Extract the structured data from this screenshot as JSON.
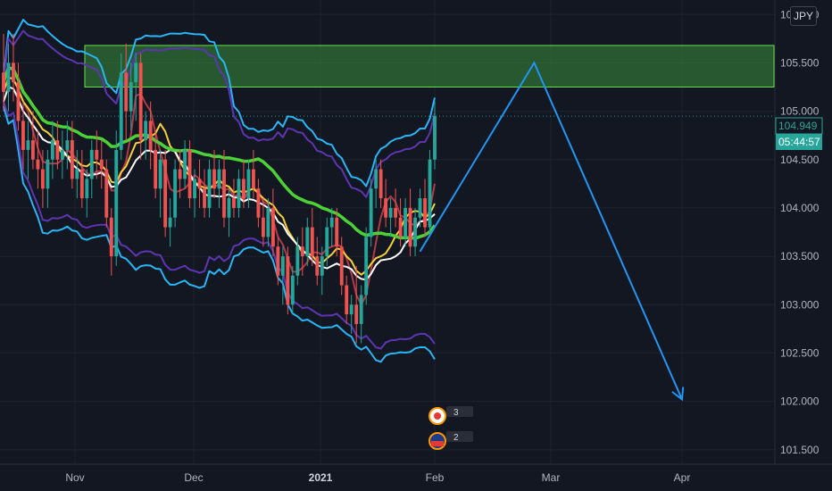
{
  "currency": "JPY",
  "price_axis": {
    "ticks": [
      "106.000",
      "105.500",
      "105.000",
      "104.500",
      "104.000",
      "103.500",
      "103.000",
      "102.500",
      "102.000",
      "101.500"
    ]
  },
  "time_axis": {
    "ticks": [
      {
        "label": "Nov",
        "bold": false
      },
      {
        "label": "Dec",
        "bold": false
      },
      {
        "label": "2021",
        "bold": true
      },
      {
        "label": "Feb",
        "bold": false
      },
      {
        "label": "Mar",
        "bold": false
      },
      {
        "label": "Apr",
        "bold": false
      }
    ]
  },
  "last_price": {
    "value": "104.949",
    "countdown": "05:44:57"
  },
  "events": [
    {
      "country": "JP",
      "count": "3"
    },
    {
      "country": "US",
      "count": "2"
    }
  ],
  "colors": {
    "background": "#131722",
    "bull": "#26a69a",
    "bear": "#ef5350",
    "ma_green": "#4cd137",
    "ma_yellow": "#f7d038",
    "ma_white": "#ffffff",
    "ma_red": "#b23a48",
    "band_cyan": "#29b6f6",
    "band_purple": "#5e35b1",
    "zone": "#4caf50",
    "projection": "#2196f3"
  },
  "chart_data": {
    "type": "candlestick",
    "title": "",
    "ylim": [
      101.35,
      106.15
    ],
    "resistance_zone": [
      105.25,
      105.68
    ],
    "projection": [
      {
        "date": "2021-01-28",
        "price": 103.55
      },
      {
        "date": "2021-02-25",
        "price": 105.5
      },
      {
        "date": "2021-04-01",
        "price": 102.02
      }
    ],
    "candles": [
      [
        105.4,
        105.8,
        105.0,
        105.2
      ],
      [
        105.2,
        105.7,
        105.0,
        105.5
      ],
      [
        105.5,
        105.8,
        105.1,
        105.3
      ],
      [
        105.3,
        105.5,
        104.8,
        104.9
      ],
      [
        104.9,
        105.1,
        104.4,
        104.6
      ],
      [
        104.6,
        104.9,
        104.3,
        104.7
      ],
      [
        104.7,
        105.0,
        104.4,
        104.5
      ],
      [
        104.5,
        104.8,
        104.2,
        104.4
      ],
      [
        104.4,
        104.6,
        104.0,
        104.2
      ],
      [
        104.2,
        104.6,
        104.0,
        104.5
      ],
      [
        104.5,
        104.9,
        104.3,
        104.7
      ],
      [
        104.7,
        104.9,
        104.4,
        104.5
      ],
      [
        104.5,
        104.8,
        104.3,
        104.6
      ],
      [
        104.6,
        104.9,
        104.4,
        104.7
      ],
      [
        104.7,
        104.9,
        104.2,
        104.3
      ],
      [
        104.3,
        104.6,
        104.1,
        104.4
      ],
      [
        104.4,
        104.6,
        104.0,
        104.1
      ],
      [
        104.1,
        104.4,
        103.9,
        104.3
      ],
      [
        104.3,
        104.7,
        104.1,
        104.6
      ],
      [
        104.6,
        104.8,
        104.3,
        104.5
      ],
      [
        104.5,
        104.7,
        104.2,
        104.4
      ],
      [
        104.4,
        104.5,
        103.8,
        103.9
      ],
      [
        103.9,
        104.0,
        103.3,
        103.5
      ],
      [
        103.5,
        104.8,
        103.4,
        104.6
      ],
      [
        104.6,
        105.6,
        104.5,
        105.4
      ],
      [
        105.4,
        105.7,
        104.7,
        105.0
      ],
      [
        105.0,
        105.5,
        104.8,
        105.3
      ],
      [
        105.3,
        105.6,
        104.9,
        105.5
      ],
      [
        105.5,
        105.6,
        104.5,
        104.7
      ],
      [
        104.7,
        105.0,
        104.5,
        104.9
      ],
      [
        104.9,
        105.1,
        104.4,
        104.6
      ],
      [
        104.6,
        104.8,
        104.1,
        104.2
      ],
      [
        104.2,
        104.6,
        103.9,
        104.5
      ],
      [
        104.5,
        104.6,
        103.7,
        103.8
      ],
      [
        103.8,
        104.1,
        103.6,
        103.9
      ],
      [
        103.9,
        104.5,
        103.8,
        104.4
      ],
      [
        104.4,
        104.6,
        104.1,
        104.3
      ],
      [
        104.3,
        104.7,
        104.2,
        104.6
      ],
      [
        104.6,
        104.7,
        104.0,
        104.1
      ],
      [
        104.1,
        104.4,
        103.9,
        104.3
      ],
      [
        104.3,
        104.5,
        104.0,
        104.2
      ],
      [
        104.2,
        104.4,
        103.9,
        104.0
      ],
      [
        104.0,
        104.5,
        103.9,
        104.4
      ],
      [
        104.4,
        104.6,
        104.1,
        104.2
      ],
      [
        104.2,
        104.5,
        104.0,
        104.4
      ],
      [
        104.4,
        104.6,
        103.8,
        103.9
      ],
      [
        103.9,
        104.2,
        103.7,
        104.1
      ],
      [
        104.1,
        104.3,
        103.9,
        104.0
      ],
      [
        104.0,
        104.4,
        103.9,
        104.3
      ],
      [
        104.3,
        104.5,
        104.0,
        104.1
      ],
      [
        104.1,
        104.5,
        104.0,
        104.4
      ],
      [
        104.4,
        104.6,
        104.1,
        104.2
      ],
      [
        104.2,
        104.3,
        103.8,
        103.9
      ],
      [
        103.9,
        104.1,
        103.6,
        103.7
      ],
      [
        103.7,
        104.1,
        103.6,
        104.0
      ],
      [
        104.0,
        104.2,
        103.5,
        103.6
      ],
      [
        103.6,
        103.7,
        103.2,
        103.3
      ],
      [
        103.3,
        103.6,
        103.0,
        103.5
      ],
      [
        103.5,
        103.6,
        102.9,
        103.0
      ],
      [
        103.0,
        103.4,
        102.9,
        103.3
      ],
      [
        103.3,
        103.7,
        103.2,
        103.6
      ],
      [
        103.6,
        103.8,
        103.3,
        103.5
      ],
      [
        103.5,
        103.9,
        103.4,
        103.8
      ],
      [
        103.8,
        104.0,
        103.4,
        103.5
      ],
      [
        103.5,
        103.7,
        103.2,
        103.3
      ],
      [
        103.3,
        103.6,
        103.1,
        103.5
      ],
      [
        103.5,
        103.9,
        103.4,
        103.8
      ],
      [
        103.8,
        104.0,
        103.6,
        103.9
      ],
      [
        103.9,
        104.0,
        103.5,
        103.6
      ],
      [
        103.6,
        103.7,
        103.1,
        103.2
      ],
      [
        103.2,
        103.3,
        102.8,
        102.9
      ],
      [
        102.9,
        103.1,
        102.7,
        103.0
      ],
      [
        103.0,
        103.4,
        102.6,
        102.8
      ],
      [
        102.8,
        103.2,
        102.6,
        103.1
      ],
      [
        103.1,
        103.8,
        103.0,
        103.7
      ],
      [
        103.7,
        104.3,
        103.6,
        104.2
      ],
      [
        104.2,
        104.5,
        104.0,
        104.4
      ],
      [
        104.4,
        104.5,
        104.0,
        104.1
      ],
      [
        104.1,
        104.3,
        103.8,
        103.9
      ],
      [
        103.9,
        104.1,
        103.7,
        104.0
      ],
      [
        104.0,
        104.2,
        103.8,
        103.9
      ],
      [
        103.9,
        104.1,
        103.6,
        103.7
      ],
      [
        103.7,
        104.1,
        103.6,
        104.0
      ],
      [
        104.0,
        104.2,
        103.5,
        103.6
      ],
      [
        103.6,
        104.0,
        103.5,
        103.9
      ],
      [
        103.9,
        104.2,
        103.8,
        104.1
      ],
      [
        104.1,
        104.3,
        103.7,
        103.8
      ],
      [
        103.8,
        104.6,
        103.7,
        104.5
      ],
      [
        104.5,
        105.1,
        104.4,
        104.95
      ]
    ]
  }
}
